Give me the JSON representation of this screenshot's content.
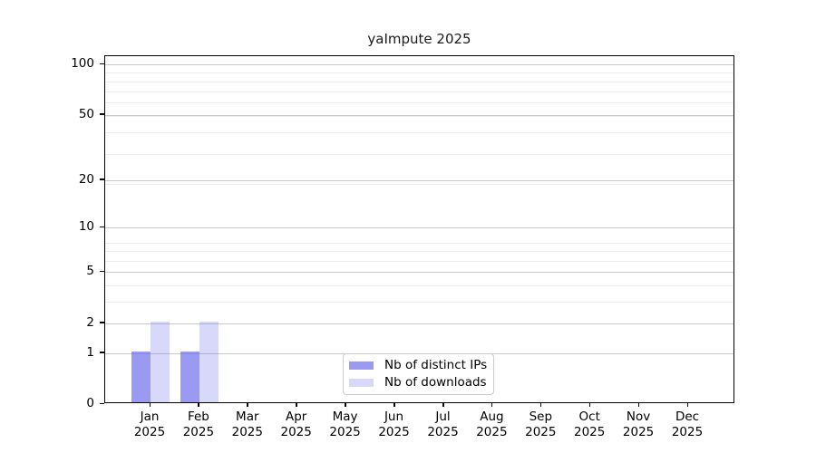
{
  "chart_data": {
    "type": "bar",
    "title": "yaImpute 2025",
    "categories": [
      "Jan 2025",
      "Feb 2025",
      "Mar 2025",
      "Apr 2025",
      "May 2025",
      "Jun 2025",
      "Jul 2025",
      "Aug 2025",
      "Sep 2025",
      "Oct 2025",
      "Nov 2025",
      "Dec 2025"
    ],
    "series": [
      {
        "name": "Nb of distinct IPs",
        "color": "rgba(100,100,235,0.65)",
        "legend_swatch": "#9a9af2",
        "values": [
          1,
          1,
          0,
          0,
          0,
          0,
          0,
          0,
          0,
          0,
          0,
          0
        ]
      },
      {
        "name": "Nb of downloads",
        "color": "rgba(100,100,235,0.25)",
        "legend_swatch": "#d8d8fa",
        "values": [
          2,
          2,
          0,
          0,
          0,
          0,
          0,
          0,
          0,
          0,
          0,
          0
        ]
      }
    ],
    "xlabel": "",
    "ylabel": "",
    "yscale": "log1p",
    "ylim": [
      0,
      111.8
    ],
    "yticks": [
      0,
      1,
      2,
      5,
      10,
      20,
      50,
      100
    ],
    "minor_gridlines_at": [
      3,
      4,
      6,
      7,
      8,
      19,
      29,
      39,
      49,
      59,
      69,
      79,
      89
    ],
    "grid": {
      "major_color": "#c8c8c8",
      "minor_color": "#ececec"
    },
    "legend": {
      "position": "lower center",
      "border_color": "#cccccc"
    }
  }
}
